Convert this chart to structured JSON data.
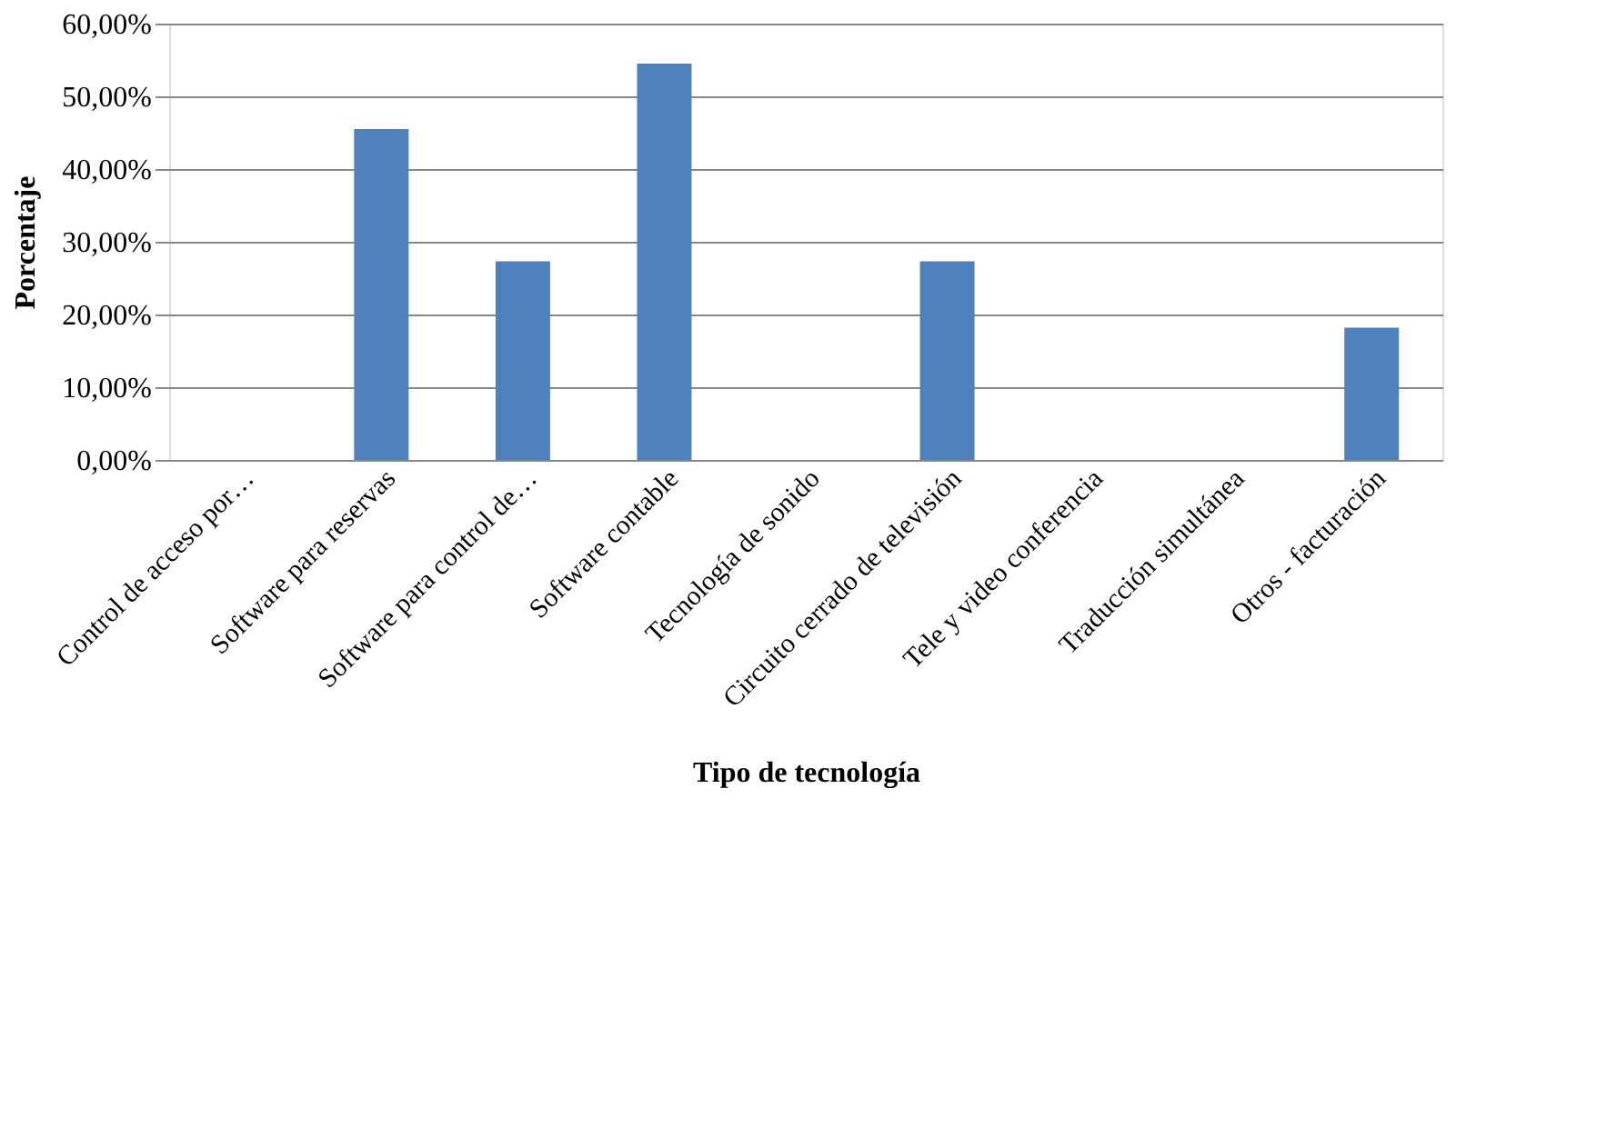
{
  "chart_data": {
    "type": "bar",
    "xlabel": "Tipo de tecnología",
    "ylabel": "Porcentaje",
    "categories": [
      "Control de acceso por…",
      "Software para reservas",
      "Software para control de…",
      "Software contable",
      "Tecnología de sonido",
      "Circuito cerrado de televisión",
      "Tele y video conferencia",
      "Traducción simultánea",
      "Otros - facturación"
    ],
    "values": [
      0,
      45.5,
      27.3,
      54.5,
      0,
      27.3,
      0,
      0,
      18.2
    ],
    "color": "#4f81bd",
    "ylim": [
      0,
      60
    ],
    "yticks": [
      {
        "value": 0,
        "label": "0,00%"
      },
      {
        "value": 10,
        "label": "10,00%"
      },
      {
        "value": 20,
        "label": "20,00%"
      },
      {
        "value": 30,
        "label": "30,00%"
      },
      {
        "value": 40,
        "label": "40,00%"
      },
      {
        "value": 50,
        "label": "50,00%"
      },
      {
        "value": 60,
        "label": "60,00%"
      }
    ],
    "grid": "y"
  }
}
